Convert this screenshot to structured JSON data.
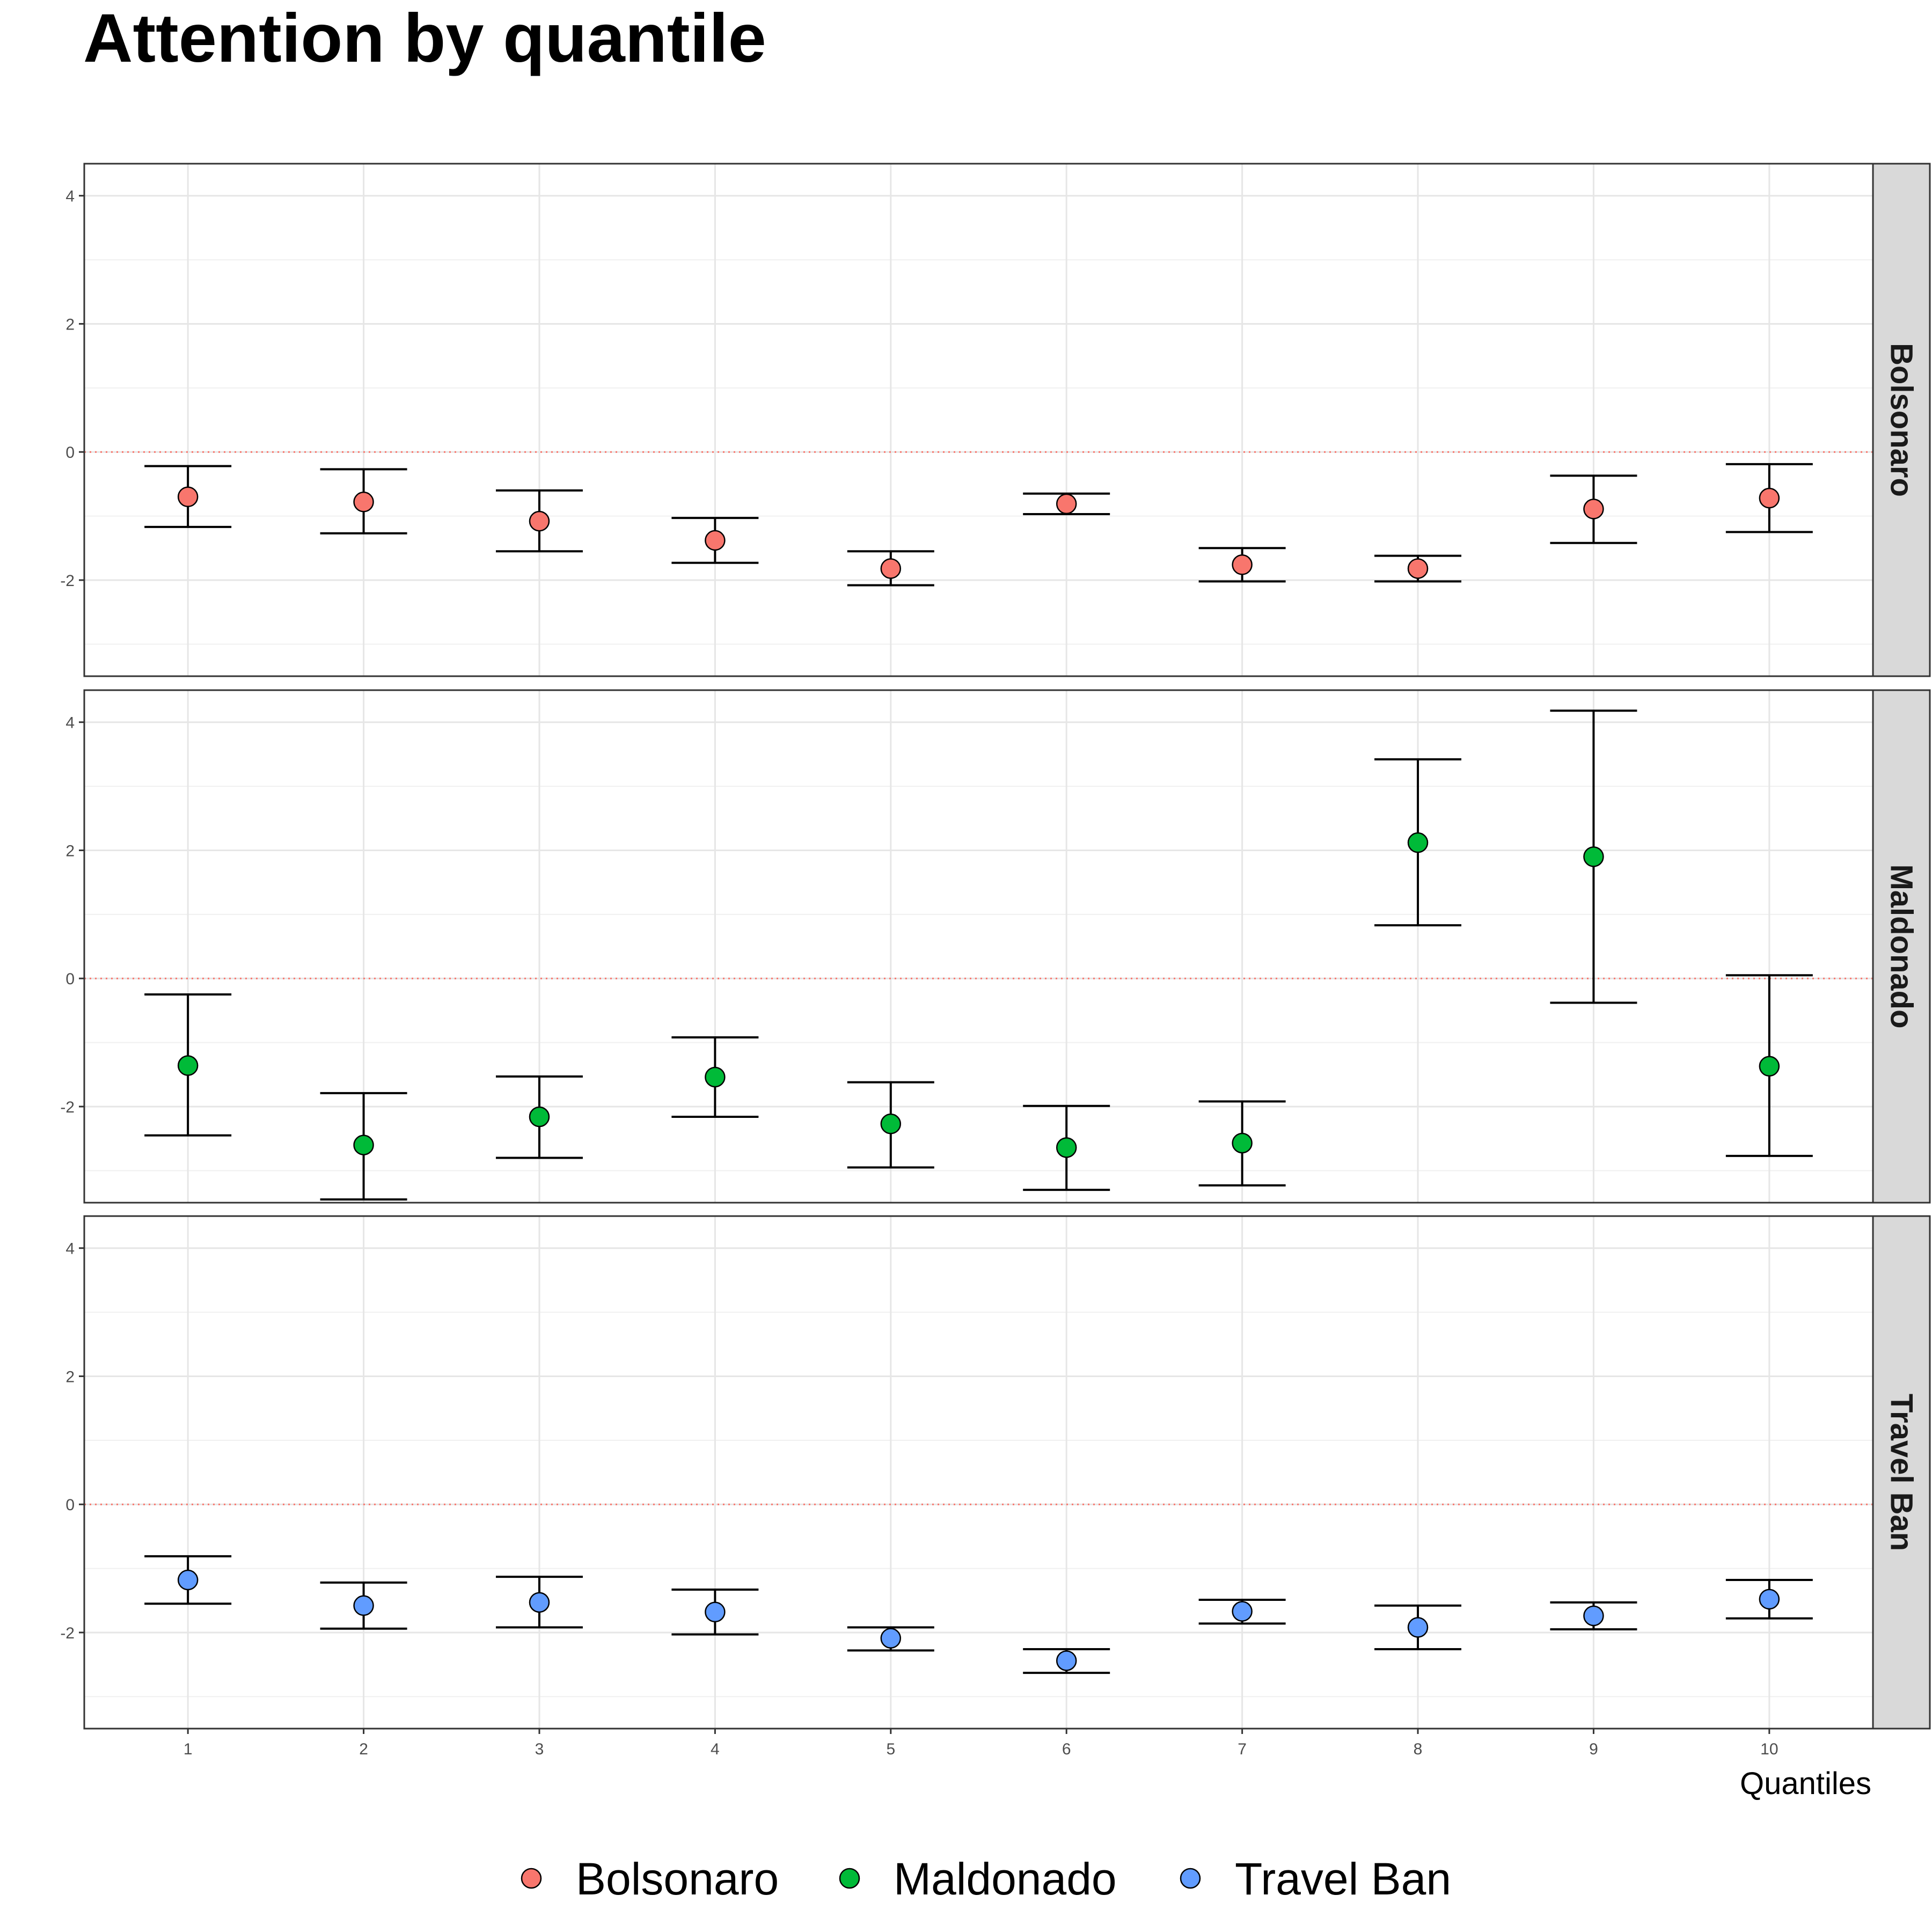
{
  "chart_data": {
    "type": "scatter",
    "title": "Attention by quantile",
    "xlabel": "Quantiles",
    "ylabel": "",
    "x": [
      1,
      2,
      3,
      4,
      5,
      6,
      7,
      8,
      9,
      10
    ],
    "xticks": [
      "1",
      "2",
      "3",
      "4",
      "5",
      "6",
      "7",
      "8",
      "9",
      "10"
    ],
    "ylim": [
      -3.5,
      4.5
    ],
    "yticks": [
      "-2",
      "0",
      "2",
      "4"
    ],
    "reference_line_y": 0,
    "grid": true,
    "legend_position": "bottom",
    "facets": [
      {
        "name": "Bolsonaro",
        "color": "#F8766D",
        "estimates": [
          -0.7,
          -0.78,
          -1.08,
          -1.38,
          -1.82,
          -0.81,
          -1.76,
          -1.82,
          -0.89,
          -0.72
        ],
        "lower": [
          -1.17,
          -1.27,
          -1.55,
          -1.73,
          -2.08,
          -0.97,
          -2.02,
          -2.02,
          -1.42,
          -1.25
        ],
        "upper": [
          -0.22,
          -0.27,
          -0.6,
          -1.03,
          -1.55,
          -0.65,
          -1.5,
          -1.62,
          -0.37,
          -0.19
        ]
      },
      {
        "name": "Maldonado",
        "color": "#00BA38",
        "estimates": [
          -1.36,
          -2.6,
          -2.16,
          -1.54,
          -2.27,
          -2.64,
          -2.57,
          2.12,
          1.9,
          -1.37
        ],
        "lower": [
          -2.45,
          -3.45,
          -2.8,
          -2.16,
          -2.95,
          -3.3,
          -3.23,
          0.83,
          -0.38,
          -2.77
        ],
        "upper": [
          -0.25,
          -1.79,
          -1.53,
          -0.92,
          -1.62,
          -1.99,
          -1.92,
          3.42,
          4.18,
          0.05
        ]
      },
      {
        "name": "Travel Ban",
        "color": "#619CFF",
        "estimates": [
          -1.18,
          -1.58,
          -1.53,
          -1.68,
          -2.09,
          -2.44,
          -1.67,
          -1.92,
          -1.74,
          -1.48
        ],
        "lower": [
          -1.55,
          -1.94,
          -1.92,
          -2.03,
          -2.28,
          -2.63,
          -1.86,
          -2.26,
          -1.95,
          -1.78
        ],
        "upper": [
          -0.81,
          -1.22,
          -1.13,
          -1.33,
          -1.92,
          -2.26,
          -1.49,
          -1.58,
          -1.53,
          -1.18
        ]
      }
    ],
    "legend": [
      "Bolsonaro",
      "Maldonado",
      "Travel Ban"
    ]
  }
}
